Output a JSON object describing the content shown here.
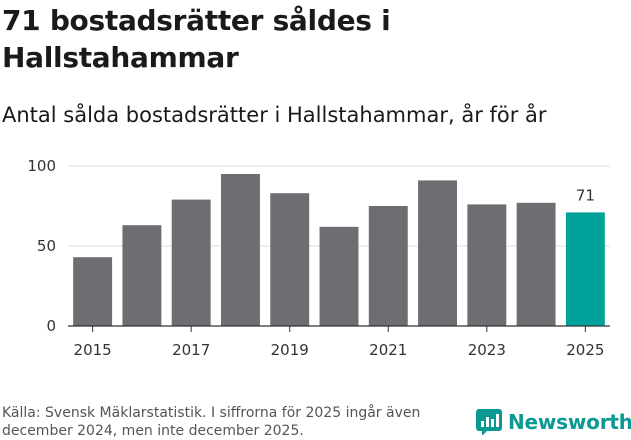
{
  "title": "71 bostadsrätter såldes i Hallstahammar",
  "subtitle": "Antal sålda bostadsrätter i Hallstahammar, år för år",
  "source": "Källa: Svensk Mäklarstatistik. I siffrorna för 2025 ingår även december 2024, men inte december 2025.",
  "logo": {
    "name": "Newsworthy",
    "color": "#0b9a93"
  },
  "chart_data": {
    "type": "bar",
    "categories": [
      "2015",
      "2016",
      "2017",
      "2018",
      "2019",
      "2020",
      "2021",
      "2022",
      "2023",
      "2024",
      "2025"
    ],
    "values": [
      43,
      63,
      79,
      95,
      83,
      62,
      75,
      91,
      76,
      77,
      71
    ],
    "x_tick_labels": [
      "2015",
      "2017",
      "2019",
      "2021",
      "2023",
      "2025"
    ],
    "y_ticks": [
      0,
      50,
      100
    ],
    "ylim": [
      0,
      100
    ],
    "highlight": {
      "category": "2025",
      "label": "71"
    },
    "colors": {
      "bar": "#6e6d72",
      "highlight": "#00a29a",
      "grid": "#dddddd",
      "axis": "#333333"
    },
    "grid": true,
    "xlabel": "",
    "ylabel": ""
  }
}
